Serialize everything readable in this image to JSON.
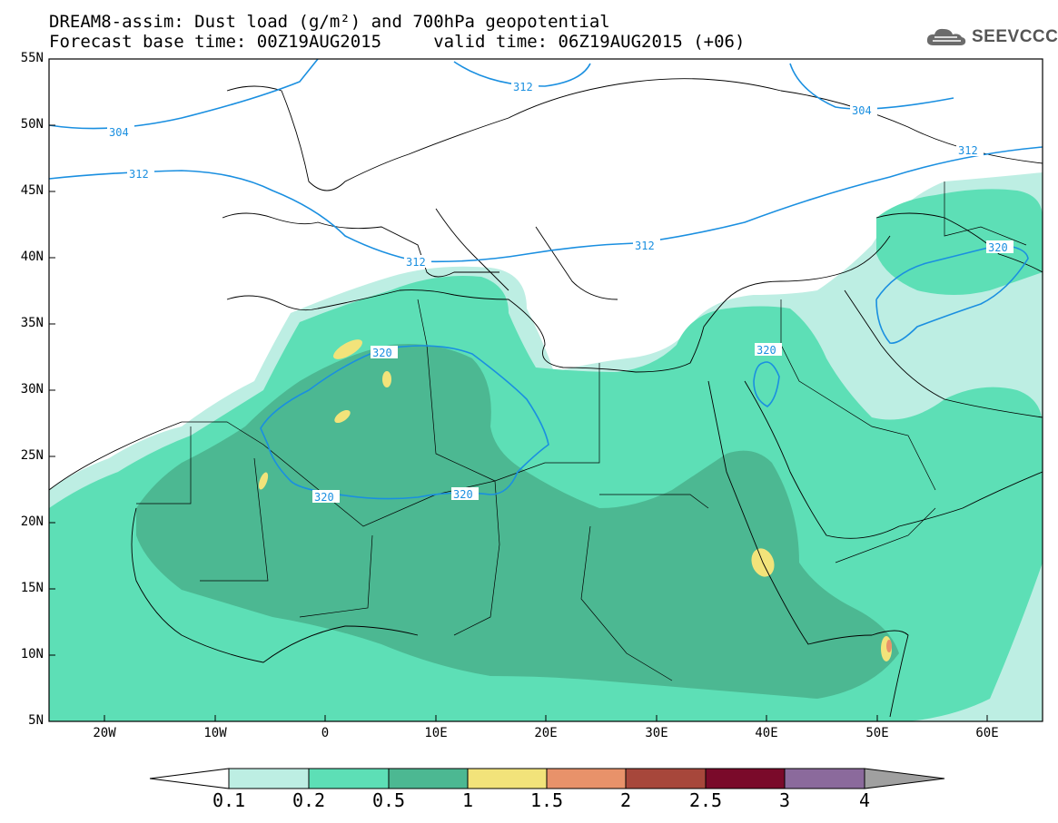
{
  "title": {
    "line1": "DREAM8-assim: Dust load (g/m²) and 700hPa geopotential",
    "line2": "Forecast base time: 00Z19AUG2015     valid time: 06Z19AUG2015 (+06)"
  },
  "logo": {
    "text": "SEEVCCC",
    "icon": "cloud-logo-icon"
  },
  "map": {
    "lat_labels": [
      "55N",
      "50N",
      "45N",
      "40N",
      "35N",
      "30N",
      "25N",
      "20N",
      "15N",
      "10N",
      "5N"
    ],
    "lon_labels": [
      "20W",
      "10W",
      "0",
      "10E",
      "20E",
      "30E",
      "40E",
      "50E",
      "60E"
    ],
    "contour_labels": [
      "304",
      "312",
      "312",
      "312",
      "312",
      "304",
      "312",
      "320",
      "320",
      "320",
      "320",
      "320"
    ],
    "colors": {
      "level1": "#bdeee3",
      "level2": "#5ddfb6",
      "level3": "#4cb892",
      "level4": "#f2e37a",
      "contour": "#1a8fe0"
    }
  },
  "colorbar": {
    "labels": [
      "0.1",
      "0.2",
      "0.5",
      "1",
      "1.5",
      "2",
      "2.5",
      "3",
      "4"
    ],
    "colors": [
      "#ffffff",
      "#bdeee3",
      "#5ddfb6",
      "#4cb892",
      "#f2e37a",
      "#e8926a",
      "#a7473b",
      "#7a0a2a",
      "#8b6a9c",
      "#a0a0a0"
    ]
  }
}
